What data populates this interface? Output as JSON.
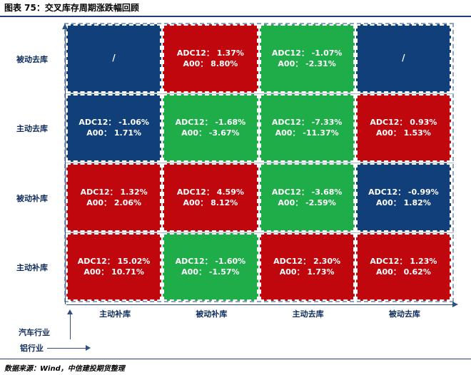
{
  "figure_title": "图表 75：交叉库存周期涨跌幅回顾",
  "source": "数据来源：Wind，中信建投期货整理",
  "colors": {
    "red": "#c0070e",
    "green": "#1fad4a",
    "blue": "#113f7a"
  },
  "chart_data": {
    "type": "heatmap",
    "title": "图表 75：交叉库存周期涨跌幅回顾",
    "y_axis_name": "汽车行业",
    "x_axis_name": "铝行业",
    "rows": [
      "被动去库",
      "主动去库",
      "被动补库",
      "主动补库"
    ],
    "columns": [
      "主动补库",
      "被动补库",
      "主动去库",
      "被动去库"
    ],
    "cells": [
      [
        {
          "color": "blue",
          "text": "/",
          "adc12": null,
          "a00": null
        },
        {
          "color": "red",
          "text": "",
          "adc12": "1.37%",
          "a00": "8.80%"
        },
        {
          "color": "green",
          "text": "",
          "adc12": "-1.07%",
          "a00": "-2.31%"
        },
        {
          "color": "blue",
          "text": "/",
          "adc12": null,
          "a00": null
        }
      ],
      [
        {
          "color": "blue",
          "text": "",
          "adc12": "-1.06%",
          "a00": "1.71%"
        },
        {
          "color": "green",
          "text": "",
          "adc12": "-1.68%",
          "a00": "-3.67%"
        },
        {
          "color": "green",
          "text": "",
          "adc12": "-7.33%",
          "a00": "-11.37%"
        },
        {
          "color": "red",
          "text": "",
          "adc12": "0.93%",
          "a00": "1.53%"
        }
      ],
      [
        {
          "color": "red",
          "text": "",
          "adc12": "1.32%",
          "a00": "2.06%"
        },
        {
          "color": "red",
          "text": "",
          "adc12": "4.59%",
          "a00": "8.12%"
        },
        {
          "color": "green",
          "text": "",
          "adc12": "-3.68%",
          "a00": "-2.59%"
        },
        {
          "color": "blue",
          "text": "",
          "adc12": "-0.99%",
          "a00": "1.82%"
        }
      ],
      [
        {
          "color": "red",
          "text": "",
          "adc12": "15.02%",
          "a00": "10.71%"
        },
        {
          "color": "green",
          "text": "",
          "adc12": "-1.60%",
          "a00": "-1.57%"
        },
        {
          "color": "red",
          "text": "",
          "adc12": "2.30%",
          "a00": "1.73%"
        },
        {
          "color": "red",
          "text": "",
          "adc12": "1.23%",
          "a00": "0.62%"
        }
      ]
    ],
    "cell_line_labels": {
      "adc12": "ADC12：",
      "a00": "A00："
    }
  }
}
